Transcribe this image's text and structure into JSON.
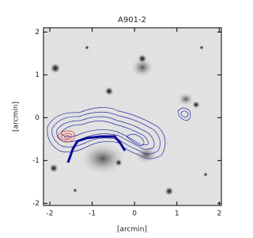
{
  "chart_data": {
    "type": "image",
    "title": "A901-2",
    "x_label": "[arcmin]",
    "y_label": "[arcmin]",
    "xlim": [
      -2.15,
      2.05
    ],
    "ylim": [
      -2.05,
      2.1
    ],
    "xticks": [
      -2,
      -1,
      0,
      1,
      2
    ],
    "yticks": [
      -2,
      -1,
      0,
      1,
      2
    ]
  }
}
